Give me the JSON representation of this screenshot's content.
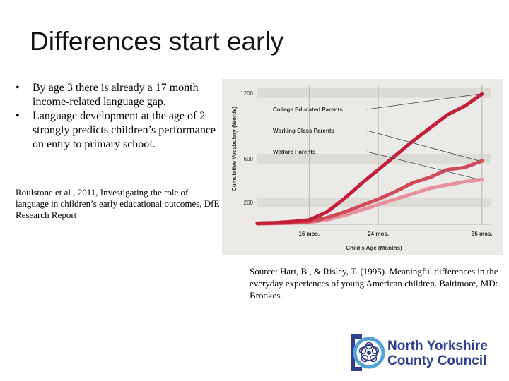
{
  "slide": {
    "title": "Differences start early",
    "bullets": [
      "By age 3 there is already a 17 month income-related language gap.",
      "Language development at the age of 2 strongly predicts children’s performance on entry to primary school."
    ],
    "bullet_symbol": "•",
    "reference": "Roulstone et al , 2011, Investigating the role of language in children’s early educational outcomes, DfE Research Report",
    "source": "Source: Hart, B., & Risley, T. (1995). Meaningful differences in the everyday experiences of young American children. Baltimore, MD: Brookes."
  },
  "chart_data": {
    "type": "line",
    "xlabel": "Child’s Age (Months)",
    "ylabel": "Cumulative Vocabulary (Words)",
    "x_ticks": [
      16,
      24,
      36
    ],
    "x_tick_labels": [
      "16 mos.",
      "24 mos.",
      "36 mos."
    ],
    "y_ticks": [
      200,
      600,
      1200
    ],
    "y_tick_labels": [
      "200",
      "600",
      "1200"
    ],
    "xlim": [
      10,
      37
    ],
    "ylim": [
      0,
      1250
    ],
    "grid": true,
    "series": [
      {
        "name": "College Educated Parents",
        "color": "#c41e3a",
        "x": [
          10,
          12,
          14,
          16,
          18,
          20,
          22,
          24,
          26,
          28,
          30,
          32,
          34,
          36
        ],
        "y": [
          10,
          15,
          25,
          40,
          110,
          230,
          370,
          500,
          630,
          760,
          880,
          1000,
          1080,
          1190
        ]
      },
      {
        "name": "Working Class Parents",
        "color": "#d04a5a",
        "x": [
          10,
          12,
          14,
          16,
          18,
          20,
          22,
          24,
          26,
          28,
          30,
          32,
          34,
          36
        ],
        "y": [
          8,
          10,
          15,
          25,
          60,
          110,
          170,
          230,
          300,
          380,
          430,
          500,
          520,
          580
        ]
      },
      {
        "name": "Welfare Parents",
        "color": "#e8909c",
        "x": [
          10,
          12,
          14,
          16,
          18,
          20,
          22,
          24,
          26,
          28,
          30,
          32,
          34,
          36
        ],
        "y": [
          5,
          8,
          12,
          18,
          40,
          80,
          130,
          180,
          230,
          280,
          330,
          360,
          390,
          410
        ]
      }
    ]
  },
  "logo": {
    "line1": "North Yorkshire",
    "line2": "County Council",
    "colors": {
      "text": "#2e3f8f",
      "accent": "#2e3f8f",
      "ring": "#4fa3d9"
    }
  }
}
